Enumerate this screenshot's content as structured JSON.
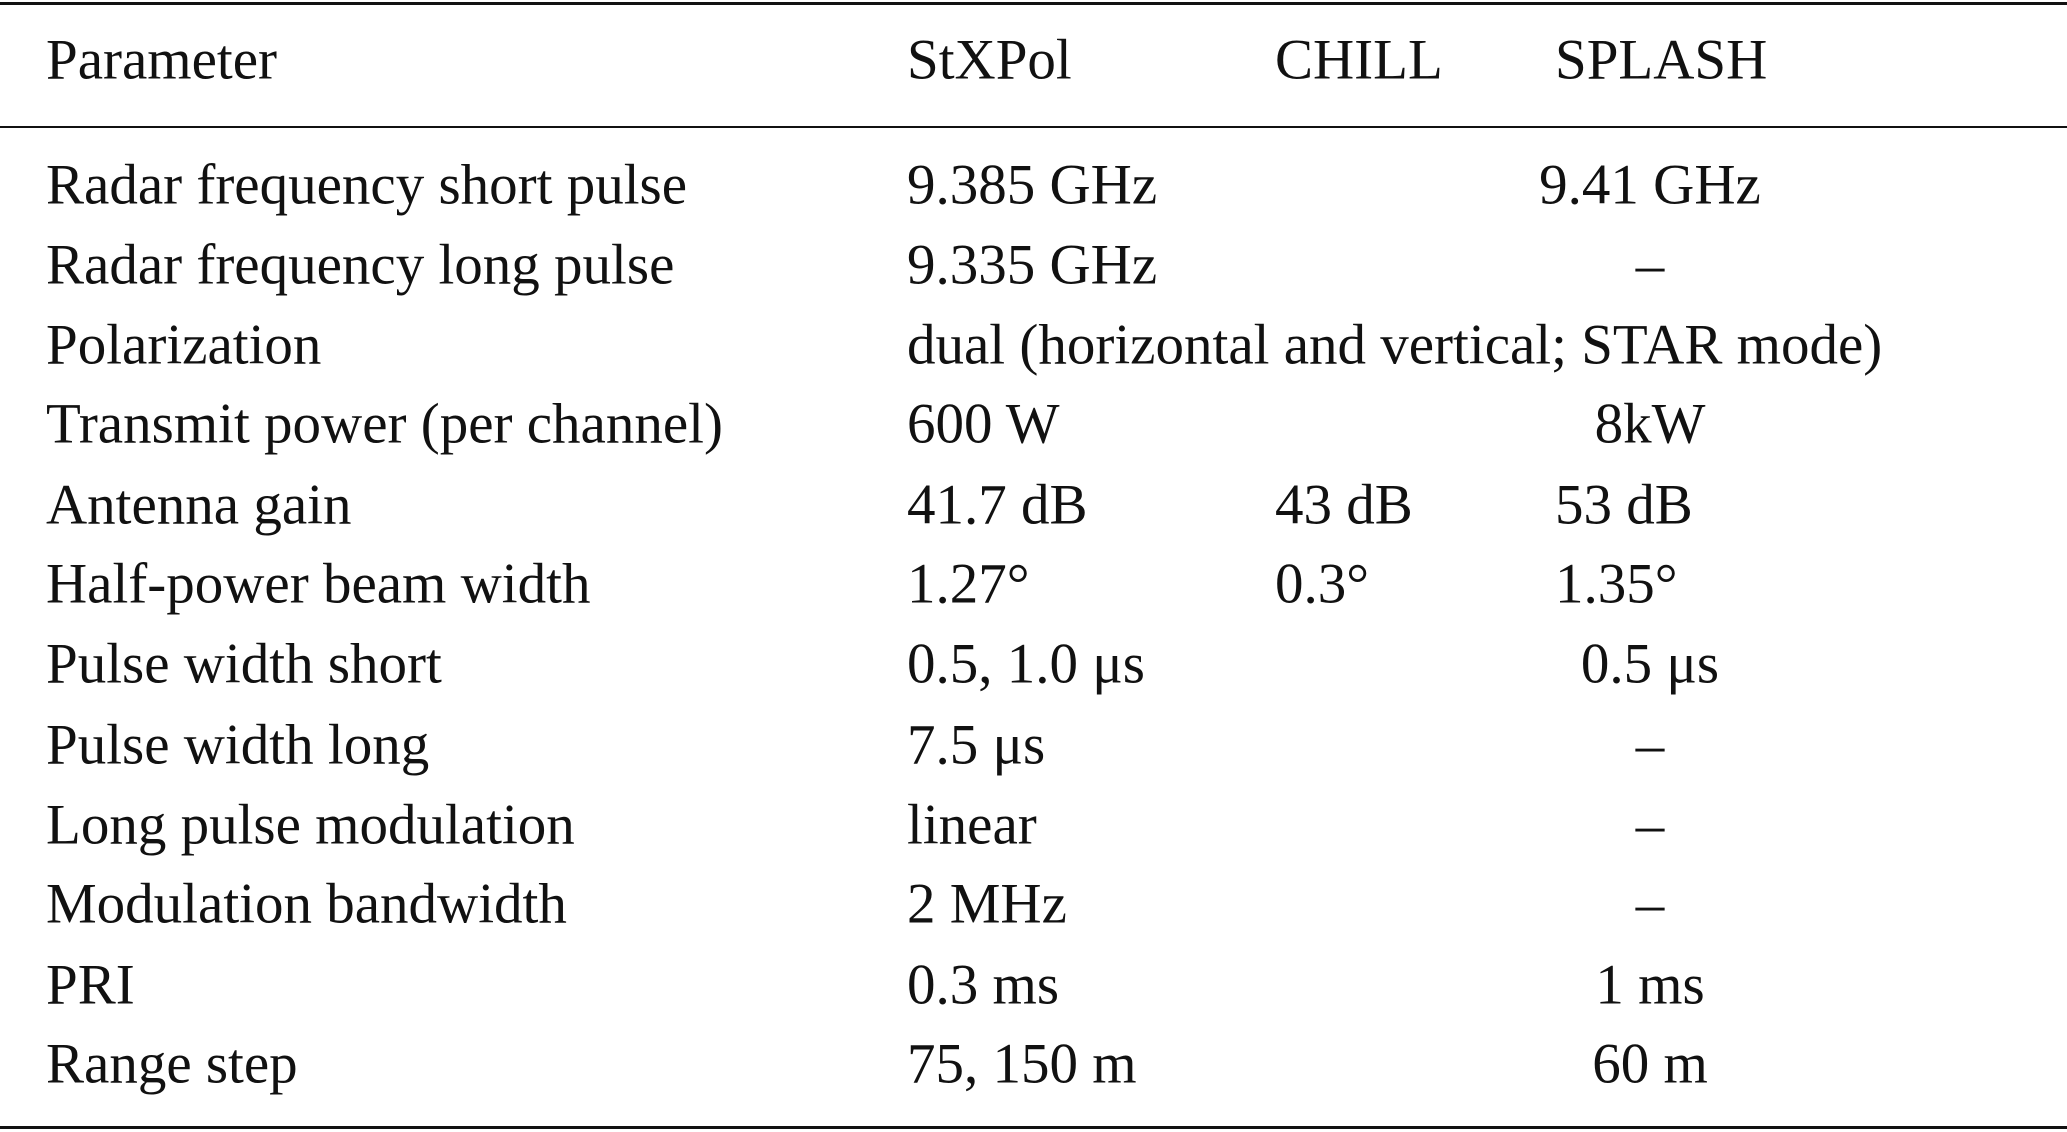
{
  "table": {
    "header": [
      "Parameter",
      "StXPol",
      "CHILL",
      "SPLASH"
    ],
    "rows": [
      [
        "Radar frequency short pulse",
        "9.385 GHz",
        "9.41 GHz"
      ],
      [
        "Radar frequency long pulse",
        "9.335 GHz",
        "–"
      ],
      [
        "Polarization",
        "dual (horizontal and vertical; STAR mode)"
      ],
      [
        "Transmit power (per channel)",
        "600 W",
        "8kW"
      ],
      [
        "Antenna gain",
        "41.7 dB",
        "43 dB",
        "53 dB"
      ],
      [
        "Half-power beam width",
        "1.27°",
        "0.3°",
        "1.35°"
      ],
      [
        "Pulse width short",
        "0.5, 1.0 μs",
        "0.5 μs"
      ],
      [
        "Pulse width long",
        "7.5 μs",
        "–"
      ],
      [
        "Long pulse modulation",
        "linear",
        "–"
      ],
      [
        "Modulation bandwidth",
        "2 MHz",
        "–"
      ],
      [
        "PRI",
        "0.3 ms",
        "1 ms"
      ],
      [
        "Range step",
        "75, 150 m",
        "60 m"
      ]
    ]
  }
}
